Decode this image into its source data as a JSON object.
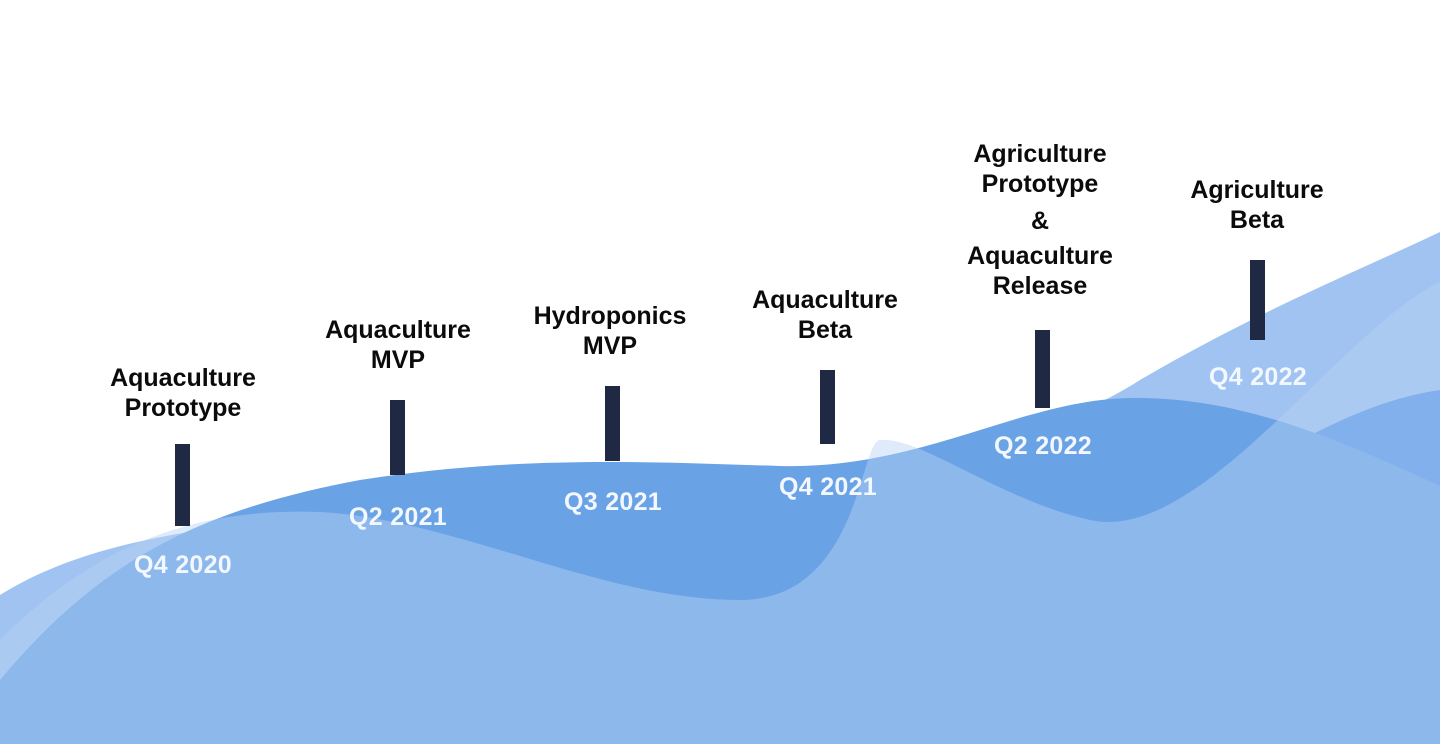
{
  "colors": {
    "background": "#ffffff",
    "wave_main": "#6aa2e6",
    "wave_light": "#9cc0f0",
    "wave_dark": "#4d8fe6",
    "bar": "#1f2944",
    "date_text": "#f3f7ff",
    "title_text": "#0b0b0b"
  },
  "milestones": [
    {
      "title_lines": [
        "Aquaculture",
        "Prototype"
      ],
      "date": "Q4 2020"
    },
    {
      "title_lines": [
        "Aquaculture",
        "MVP"
      ],
      "date": "Q2 2021"
    },
    {
      "title_lines": [
        "Hydroponics",
        "MVP"
      ],
      "date": "Q3 2021"
    },
    {
      "title_lines": [
        "Aquaculture",
        "Beta"
      ],
      "date": "Q4 2021"
    },
    {
      "title_lines": [
        "Agriculture",
        "Prototype",
        "&",
        "Aquaculture",
        "Release"
      ],
      "date": "Q2 2022"
    },
    {
      "title_lines": [
        "Agriculture",
        "Beta"
      ],
      "date": "Q4 2022"
    }
  ]
}
